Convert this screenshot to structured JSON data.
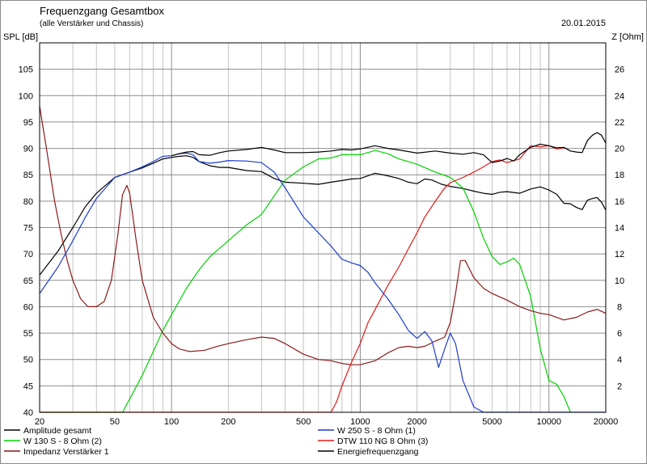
{
  "chart_data": {
    "type": "line",
    "title": "Frequenzgang Gesamtbox",
    "subtitle": "(alle Verstärker und Chassis)",
    "date": "20.01.2015",
    "ylabel_left": "SPL [dB]",
    "ylabel_right": "Z [Ohm]",
    "x_scale": "log",
    "xlim": [
      20,
      20000
    ],
    "ylim_left": [
      40,
      110
    ],
    "ylim_right": [
      0,
      28
    ],
    "x_ticks": [
      20,
      50,
      100,
      200,
      500,
      1000,
      2000,
      5000,
      10000,
      20000
    ],
    "x_tick_labels": [
      "20",
      "50",
      "100",
      "200",
      "500",
      "1000",
      "2000",
      "5000",
      "10000",
      "20000"
    ],
    "y_ticks_left": [
      40,
      45,
      50,
      55,
      60,
      65,
      70,
      75,
      80,
      85,
      90,
      95,
      100,
      105
    ],
    "y_ticks_right": [
      2,
      4,
      6,
      8,
      10,
      12,
      14,
      16,
      18,
      20,
      22,
      24,
      26
    ],
    "grid": true,
    "legend_position": "bottom",
    "series": [
      {
        "name": "Amplitude gesamt",
        "color": "#000000",
        "axis": "left",
        "points": [
          [
            20,
            66
          ],
          [
            25,
            70.5
          ],
          [
            30,
            75
          ],
          [
            35,
            79
          ],
          [
            40,
            81.5
          ],
          [
            50,
            84.5
          ],
          [
            60,
            85.5
          ],
          [
            70,
            86.3
          ],
          [
            80,
            87.2
          ],
          [
            90,
            88
          ],
          [
            100,
            88.3
          ],
          [
            110,
            88.5
          ],
          [
            120,
            88.6
          ],
          [
            130,
            88.3
          ],
          [
            140,
            87.5
          ],
          [
            160,
            86.7
          ],
          [
            180,
            86.4
          ],
          [
            200,
            86.4
          ],
          [
            250,
            85.8
          ],
          [
            300,
            85.6
          ],
          [
            350,
            84.3
          ],
          [
            400,
            83.6
          ],
          [
            500,
            83.4
          ],
          [
            600,
            83.2
          ],
          [
            700,
            83.6
          ],
          [
            800,
            83.9
          ],
          [
            900,
            84.2
          ],
          [
            1000,
            84.3
          ],
          [
            1200,
            85.3
          ],
          [
            1400,
            84.8
          ],
          [
            1600,
            84.3
          ],
          [
            1800,
            83.6
          ],
          [
            2000,
            83.3
          ],
          [
            2200,
            84.2
          ],
          [
            2400,
            84
          ],
          [
            2700,
            83.2
          ],
          [
            3000,
            82.8
          ],
          [
            3500,
            82.4
          ],
          [
            4000,
            81.9
          ],
          [
            4500,
            81.5
          ],
          [
            5000,
            81.3
          ],
          [
            5500,
            81.7
          ],
          [
            6000,
            81.8
          ],
          [
            7000,
            81.5
          ],
          [
            8000,
            82.3
          ],
          [
            9000,
            82.7
          ],
          [
            10000,
            82.1
          ],
          [
            11000,
            81.3
          ],
          [
            12000,
            79.6
          ],
          [
            13000,
            79.5
          ],
          [
            14000,
            78.8
          ],
          [
            15000,
            78.4
          ],
          [
            16000,
            80.2
          ],
          [
            17000,
            80.5
          ],
          [
            18000,
            80.7
          ],
          [
            19000,
            79.8
          ],
          [
            20000,
            78.3
          ]
        ]
      },
      {
        "name": "W 130 S - 8 Ohm (2)",
        "color": "#00d200",
        "axis": "left",
        "points": [
          [
            20,
            40
          ],
          [
            55,
            40
          ],
          [
            60,
            42.5
          ],
          [
            70,
            47
          ],
          [
            80,
            51.5
          ],
          [
            90,
            55.5
          ],
          [
            100,
            58.5
          ],
          [
            120,
            63.5
          ],
          [
            140,
            67
          ],
          [
            160,
            69.5
          ],
          [
            200,
            72.5
          ],
          [
            250,
            75.5
          ],
          [
            300,
            77.5
          ],
          [
            350,
            81
          ],
          [
            400,
            84
          ],
          [
            500,
            86.5
          ],
          [
            600,
            88
          ],
          [
            700,
            88.2
          ],
          [
            800,
            88.8
          ],
          [
            1000,
            88.8
          ],
          [
            1200,
            89.6
          ],
          [
            1400,
            89
          ],
          [
            1600,
            88
          ],
          [
            1800,
            87.5
          ],
          [
            2000,
            87
          ],
          [
            2500,
            85.5
          ],
          [
            3000,
            84.5
          ],
          [
            3500,
            82.5
          ],
          [
            4000,
            78
          ],
          [
            4500,
            73
          ],
          [
            5000,
            69.5
          ],
          [
            5500,
            68
          ],
          [
            6000,
            68.5
          ],
          [
            6500,
            69.2
          ],
          [
            7000,
            68
          ],
          [
            8000,
            62
          ],
          [
            9000,
            52
          ],
          [
            10000,
            46
          ],
          [
            11000,
            45.3
          ],
          [
            12000,
            43
          ],
          [
            13000,
            40
          ]
        ]
      },
      {
        "name": "Impedanz Verstärker 1",
        "color": "#8b1a1a",
        "axis": "right",
        "points": [
          [
            20,
            23.2
          ],
          [
            22,
            19.5
          ],
          [
            24,
            16
          ],
          [
            26,
            13.5
          ],
          [
            28,
            11.5
          ],
          [
            30,
            10
          ],
          [
            33,
            8.6
          ],
          [
            36,
            8
          ],
          [
            40,
            8
          ],
          [
            44,
            8.4
          ],
          [
            48,
            10
          ],
          [
            52,
            13.5
          ],
          [
            55,
            16.5
          ],
          [
            58,
            17.2
          ],
          [
            60,
            16.6
          ],
          [
            65,
            13
          ],
          [
            70,
            10
          ],
          [
            80,
            7.2
          ],
          [
            90,
            6
          ],
          [
            100,
            5.2
          ],
          [
            110,
            4.8
          ],
          [
            125,
            4.6
          ],
          [
            150,
            4.7
          ],
          [
            175,
            5
          ],
          [
            200,
            5.2
          ],
          [
            250,
            5.5
          ],
          [
            300,
            5.7
          ],
          [
            350,
            5.6
          ],
          [
            400,
            5.2
          ],
          [
            500,
            4.4
          ],
          [
            600,
            4
          ],
          [
            700,
            3.9
          ],
          [
            800,
            3.7
          ],
          [
            900,
            3.6
          ],
          [
            1000,
            3.6
          ],
          [
            1200,
            3.9
          ],
          [
            1400,
            4.5
          ],
          [
            1600,
            4.9
          ],
          [
            1800,
            5
          ],
          [
            2000,
            4.9
          ],
          [
            2200,
            5
          ],
          [
            2500,
            5.4
          ],
          [
            2800,
            5.7
          ],
          [
            3000,
            6.8
          ],
          [
            3200,
            9
          ],
          [
            3400,
            11.5
          ],
          [
            3600,
            11.5
          ],
          [
            4000,
            10.2
          ],
          [
            4500,
            9.4
          ],
          [
            5000,
            9
          ],
          [
            6000,
            8.5
          ],
          [
            7000,
            8
          ],
          [
            8000,
            7.7
          ],
          [
            9000,
            7.5
          ],
          [
            10000,
            7.4
          ],
          [
            12000,
            7
          ],
          [
            14000,
            7.2
          ],
          [
            16000,
            7.6
          ],
          [
            18000,
            7.8
          ],
          [
            20000,
            7.5
          ]
        ]
      },
      {
        "name": "W 250 S - 8 Ohm  (1)",
        "color": "#1e3ccb",
        "axis": "left",
        "points": [
          [
            20,
            62.5
          ],
          [
            25,
            67.5
          ],
          [
            30,
            72.5
          ],
          [
            35,
            77
          ],
          [
            40,
            80.5
          ],
          [
            50,
            84.5
          ],
          [
            60,
            85.5
          ],
          [
            70,
            86.5
          ],
          [
            80,
            87.5
          ],
          [
            90,
            88.5
          ],
          [
            100,
            88.6
          ],
          [
            110,
            89
          ],
          [
            120,
            89.1
          ],
          [
            130,
            88.8
          ],
          [
            140,
            87.5
          ],
          [
            160,
            87.2
          ],
          [
            180,
            87.4
          ],
          [
            200,
            87.7
          ],
          [
            250,
            87.6
          ],
          [
            300,
            87.3
          ],
          [
            350,
            85.5
          ],
          [
            400,
            82.5
          ],
          [
            500,
            77
          ],
          [
            600,
            74
          ],
          [
            700,
            71.5
          ],
          [
            800,
            69
          ],
          [
            900,
            68.3
          ],
          [
            1000,
            67.8
          ],
          [
            1100,
            66.5
          ],
          [
            1200,
            64.5
          ],
          [
            1400,
            61.5
          ],
          [
            1600,
            58.5
          ],
          [
            1800,
            55.5
          ],
          [
            2000,
            54
          ],
          [
            2200,
            55.3
          ],
          [
            2400,
            53.5
          ],
          [
            2600,
            48.5
          ],
          [
            2800,
            52
          ],
          [
            3000,
            55
          ],
          [
            3200,
            53
          ],
          [
            3500,
            46
          ],
          [
            4000,
            41
          ],
          [
            4500,
            40
          ],
          [
            20000,
            40
          ]
        ]
      },
      {
        "name": "DTW 110 NG 8 Ohm (3)",
        "color": "#e01818",
        "axis": "left",
        "points": [
          [
            20,
            40
          ],
          [
            700,
            40
          ],
          [
            750,
            42
          ],
          [
            800,
            45
          ],
          [
            900,
            49.5
          ],
          [
            1000,
            53
          ],
          [
            1100,
            57
          ],
          [
            1200,
            59.5
          ],
          [
            1400,
            64
          ],
          [
            1600,
            67.5
          ],
          [
            1800,
            71
          ],
          [
            2000,
            74
          ],
          [
            2200,
            77
          ],
          [
            2500,
            80
          ],
          [
            2800,
            82.5
          ],
          [
            3000,
            83.5
          ],
          [
            3500,
            84.5
          ],
          [
            4000,
            85.5
          ],
          [
            4500,
            86.5
          ],
          [
            5000,
            87.5
          ],
          [
            5500,
            87.8
          ],
          [
            6000,
            87.3
          ],
          [
            7000,
            88
          ],
          [
            8000,
            90.5
          ],
          [
            9000,
            90.3
          ],
          [
            10000,
            90.5
          ],
          [
            11000,
            89.9
          ],
          [
            12000,
            90.1
          ]
        ]
      },
      {
        "name": "Energiefrequenzgang",
        "color": "#000000",
        "axis": "left",
        "points": [
          [
            100,
            88.6
          ],
          [
            110,
            89
          ],
          [
            120,
            89.3
          ],
          [
            130,
            89.4
          ],
          [
            140,
            88.8
          ],
          [
            160,
            88.7
          ],
          [
            180,
            89.2
          ],
          [
            200,
            89.5
          ],
          [
            250,
            89.8
          ],
          [
            300,
            90.2
          ],
          [
            350,
            89.7
          ],
          [
            400,
            89.2
          ],
          [
            500,
            89.2
          ],
          [
            600,
            89.3
          ],
          [
            700,
            89.5
          ],
          [
            800,
            89.8
          ],
          [
            900,
            89.7
          ],
          [
            1000,
            89.9
          ],
          [
            1200,
            90.5
          ],
          [
            1400,
            90
          ],
          [
            1600,
            89.7
          ],
          [
            1800,
            89.4
          ],
          [
            2000,
            89.1
          ],
          [
            2500,
            89.5
          ],
          [
            3000,
            89.1
          ],
          [
            3500,
            88.9
          ],
          [
            4000,
            89.2
          ],
          [
            4500,
            88.8
          ],
          [
            5000,
            87.3
          ],
          [
            5500,
            87.6
          ],
          [
            6000,
            88.1
          ],
          [
            6500,
            87.6
          ],
          [
            7000,
            88.8
          ],
          [
            8000,
            90.2
          ],
          [
            9000,
            90.8
          ],
          [
            10000,
            90.5
          ],
          [
            11000,
            90.1
          ],
          [
            12000,
            90.2
          ],
          [
            13000,
            89.5
          ],
          [
            14000,
            89.3
          ],
          [
            15000,
            89.2
          ],
          [
            16000,
            91.5
          ],
          [
            17000,
            92.5
          ],
          [
            18000,
            93
          ],
          [
            19000,
            92.5
          ],
          [
            20000,
            91
          ]
        ]
      }
    ]
  }
}
